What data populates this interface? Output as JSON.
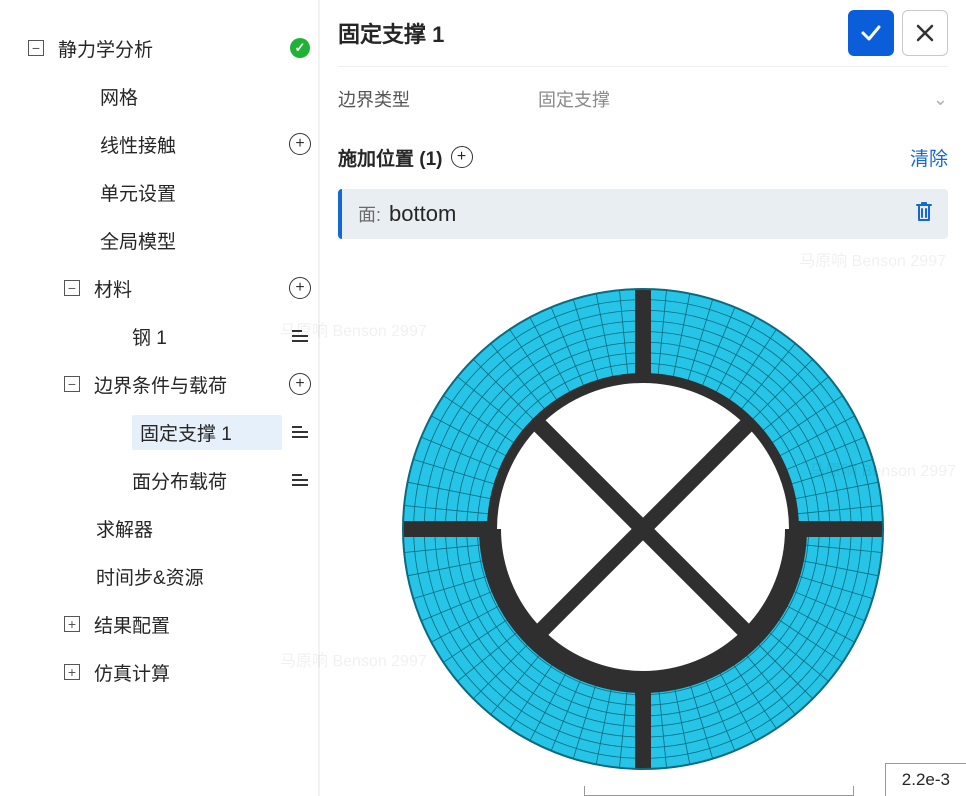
{
  "watermark_text": "马原响 Benson 2997",
  "sidebar": {
    "root": {
      "label": "静力学分析",
      "expander": "−",
      "status": "ok"
    },
    "children_root": [
      {
        "label": "网格"
      },
      {
        "label": "线性接触",
        "tail": "plus"
      },
      {
        "label": "单元设置"
      },
      {
        "label": "全局模型"
      }
    ],
    "material": {
      "label": "材料",
      "expander": "−",
      "tail": "plus"
    },
    "material_children": [
      {
        "label": "钢 1",
        "tail": "list"
      }
    ],
    "boundary": {
      "label": "边界条件与载荷",
      "expander": "−",
      "tail": "plus"
    },
    "boundary_children": [
      {
        "label": "固定支撑 1",
        "tail": "list",
        "selected": true
      },
      {
        "label": "面分布载荷",
        "tail": "list"
      }
    ],
    "solver": {
      "label": "求解器"
    },
    "solver_children": [
      {
        "label": "时间步&资源"
      }
    ],
    "result": {
      "label": "结果配置",
      "expander": "+"
    },
    "sim": {
      "label": "仿真计算",
      "expander": "+"
    }
  },
  "panel": {
    "title": "固定支撑 1",
    "field_label": "边界类型",
    "field_value": "固定支撑",
    "apply_label": "施加位置 (1)",
    "clear": "清除",
    "surface_prefix": "面:",
    "surface_name": "bottom"
  },
  "model": {
    "mesh_color": "#26c4e6",
    "mesh_stroke": "#0d6a7e",
    "spoke_color": "#2f2f2f",
    "outer_r": 240,
    "inner_r": 155,
    "n_radial_rings": 8,
    "n_circ_segments": 64,
    "spoke_width": 16,
    "spoke_angles_deg": [
      0,
      90,
      180,
      270
    ],
    "cross_angles_deg": [
      45,
      225,
      135,
      315
    ],
    "scale_label": "2.2e-3"
  }
}
